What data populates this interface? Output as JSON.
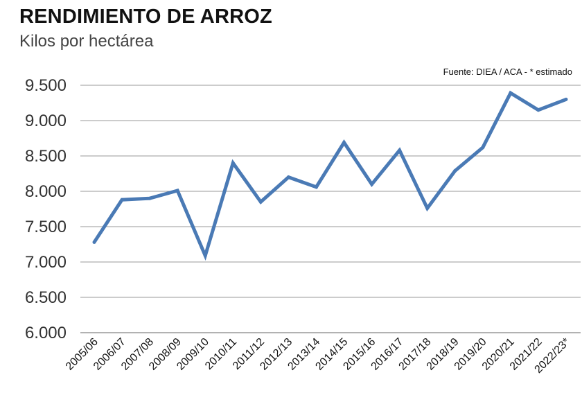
{
  "header": {
    "title": "RENDIMIENTO DE ARROZ",
    "subtitle": "Kilos por hectárea",
    "source": "Fuente: DIEA / ACA  - * estimado"
  },
  "chart_data": {
    "type": "line",
    "title": "RENDIMIENTO DE ARROZ",
    "subtitle": "Kilos por hectárea",
    "xlabel": "",
    "ylabel": "",
    "ylim": [
      6000,
      9500
    ],
    "yticks": [
      6000,
      6500,
      7000,
      7500,
      8000,
      8500,
      9000,
      9500
    ],
    "ytick_labels": [
      "6.000",
      "6.500",
      "7.000",
      "7.500",
      "8.000",
      "8.500",
      "9.000",
      "9.500"
    ],
    "grid": "horizontal",
    "categories": [
      "2005/06",
      "2006/07",
      "2007/08",
      "2008/09",
      "2009/10",
      "2010/11",
      "2011/12",
      "2012/13",
      "2013/14",
      "2014/15",
      "2015/16",
      "2016/17",
      "2017/18",
      "2018/19",
      "2019/20",
      "2020/21",
      "2021/22",
      "2022/23*"
    ],
    "series": [
      {
        "values": [
          7280,
          7880,
          7900,
          8010,
          7090,
          8400,
          7850,
          8200,
          8060,
          8690,
          8100,
          8580,
          7760,
          8290,
          8620,
          9390,
          9150,
          9300
        ]
      }
    ],
    "colors": {
      "line": "#4a7ab5",
      "grid": "#999999"
    }
  }
}
